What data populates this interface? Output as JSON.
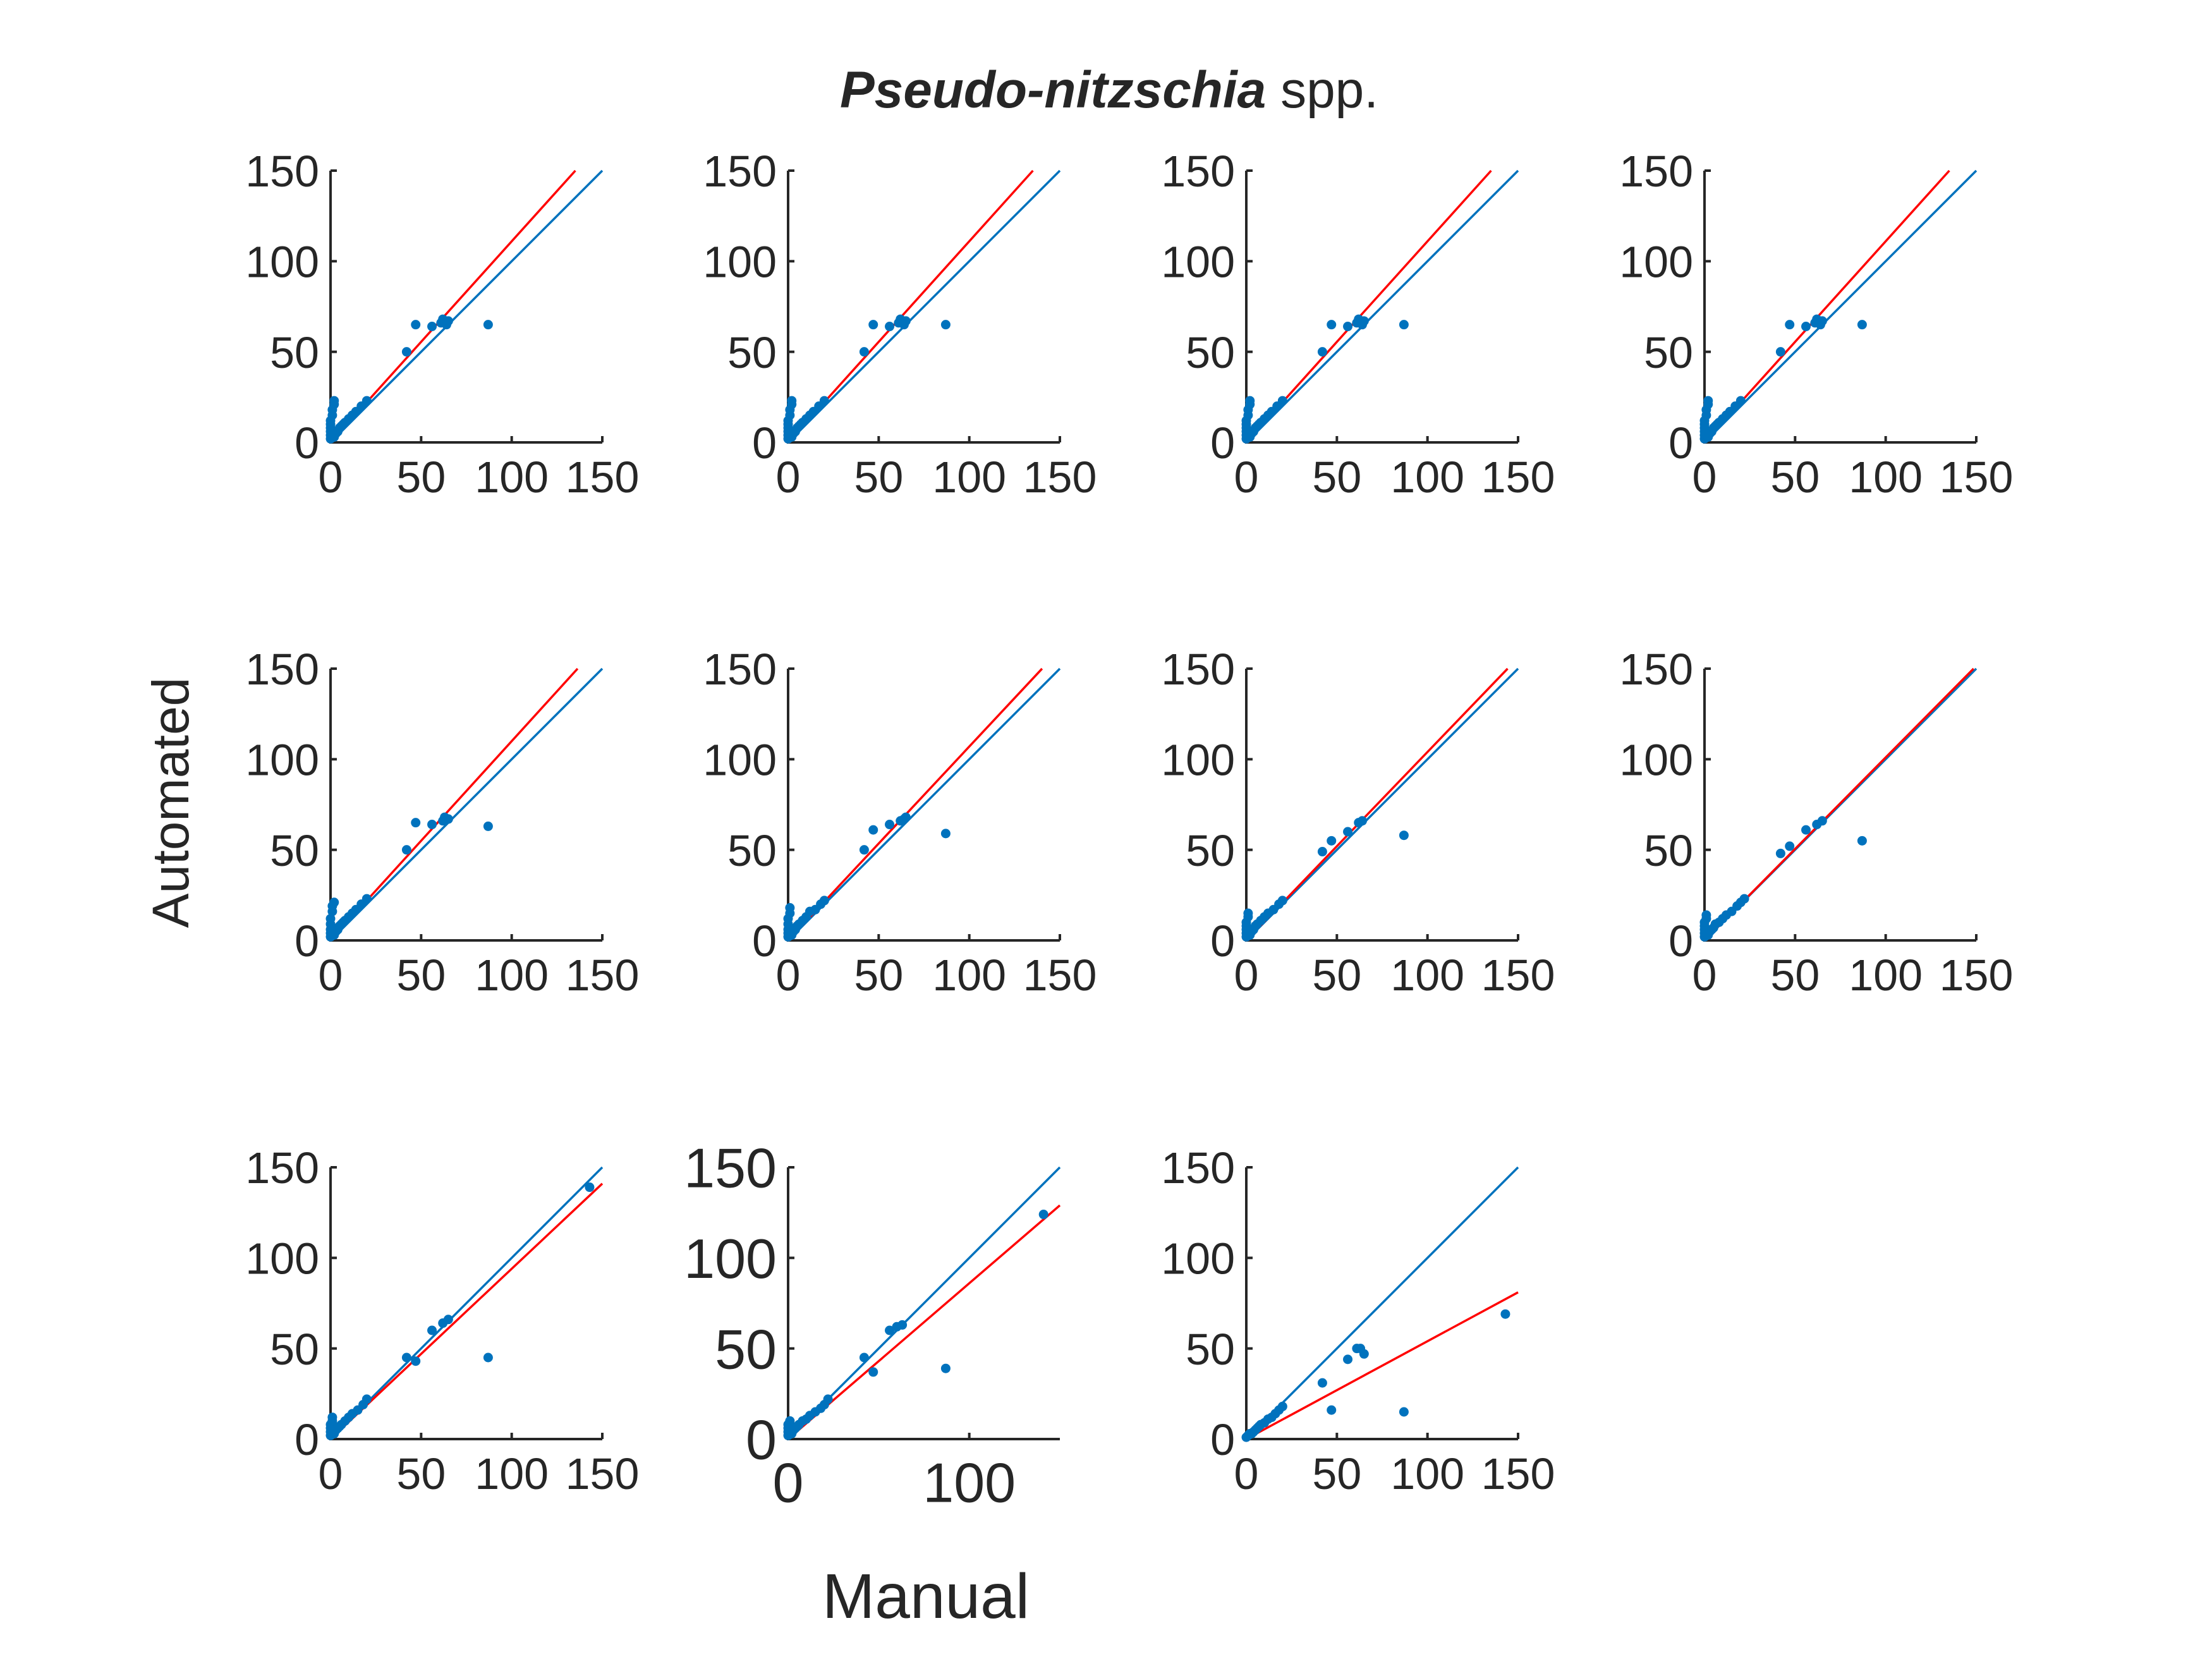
{
  "title": {
    "species": "Pseudo-nitzschia",
    "suffix": " spp."
  },
  "xlabel": "Manual",
  "ylabel": "Automated",
  "colors": {
    "identity": "#0072BD",
    "fit": "#FF0000",
    "points": "#0072BD",
    "axis": "#262626"
  },
  "chart_data": [
    {
      "type": "scatter",
      "xlim": [
        0,
        150
      ],
      "ylim": [
        0,
        150
      ],
      "xticks": [
        0,
        50,
        100,
        150
      ],
      "yticks": [
        0,
        50,
        100,
        150
      ],
      "fit_slope": 1.11,
      "points": [
        [
          0,
          2
        ],
        [
          0,
          4
        ],
        [
          0,
          6
        ],
        [
          0,
          8
        ],
        [
          0,
          10
        ],
        [
          0,
          12
        ],
        [
          1,
          15
        ],
        [
          1,
          18
        ],
        [
          2,
          21
        ],
        [
          2,
          23
        ],
        [
          2,
          3
        ],
        [
          3,
          5
        ],
        [
          4,
          6
        ],
        [
          5,
          8
        ],
        [
          6,
          9
        ],
        [
          7,
          10
        ],
        [
          8,
          11
        ],
        [
          10,
          13
        ],
        [
          12,
          15
        ],
        [
          14,
          17
        ],
        [
          17,
          20
        ],
        [
          20,
          23
        ],
        [
          42,
          50
        ],
        [
          47,
          65
        ],
        [
          56,
          64
        ],
        [
          61,
          66
        ],
        [
          62,
          68
        ],
        [
          63,
          67
        ],
        [
          64,
          65
        ],
        [
          65,
          67
        ],
        [
          87,
          65
        ]
      ]
    },
    {
      "type": "scatter",
      "xlim": [
        0,
        150
      ],
      "ylim": [
        0,
        150
      ],
      "xticks": [
        0,
        50,
        100,
        150
      ],
      "yticks": [
        0,
        50,
        100,
        150
      ],
      "fit_slope": 1.11,
      "points": [
        [
          0,
          2
        ],
        [
          0,
          4
        ],
        [
          0,
          6
        ],
        [
          0,
          8
        ],
        [
          0,
          10
        ],
        [
          0,
          12
        ],
        [
          1,
          15
        ],
        [
          1,
          18
        ],
        [
          2,
          21
        ],
        [
          2,
          23
        ],
        [
          2,
          3
        ],
        [
          3,
          5
        ],
        [
          4,
          6
        ],
        [
          5,
          8
        ],
        [
          6,
          9
        ],
        [
          7,
          10
        ],
        [
          8,
          11
        ],
        [
          10,
          13
        ],
        [
          12,
          15
        ],
        [
          14,
          17
        ],
        [
          17,
          20
        ],
        [
          20,
          23
        ],
        [
          42,
          50
        ],
        [
          47,
          65
        ],
        [
          56,
          64
        ],
        [
          61,
          66
        ],
        [
          62,
          68
        ],
        [
          63,
          67
        ],
        [
          64,
          65
        ],
        [
          65,
          67
        ],
        [
          87,
          65
        ]
      ]
    },
    {
      "type": "scatter",
      "xlim": [
        0,
        150
      ],
      "ylim": [
        0,
        150
      ],
      "xticks": [
        0,
        50,
        100,
        150
      ],
      "yticks": [
        0,
        50,
        100,
        150
      ],
      "fit_slope": 1.11,
      "points": [
        [
          0,
          2
        ],
        [
          0,
          4
        ],
        [
          0,
          6
        ],
        [
          0,
          8
        ],
        [
          0,
          10
        ],
        [
          0,
          12
        ],
        [
          1,
          15
        ],
        [
          1,
          18
        ],
        [
          2,
          21
        ],
        [
          2,
          23
        ],
        [
          2,
          3
        ],
        [
          3,
          5
        ],
        [
          4,
          6
        ],
        [
          5,
          8
        ],
        [
          6,
          9
        ],
        [
          7,
          10
        ],
        [
          8,
          11
        ],
        [
          10,
          13
        ],
        [
          12,
          15
        ],
        [
          14,
          17
        ],
        [
          17,
          20
        ],
        [
          20,
          23
        ],
        [
          42,
          50
        ],
        [
          47,
          65
        ],
        [
          56,
          64
        ],
        [
          61,
          66
        ],
        [
          62,
          68
        ],
        [
          63,
          67
        ],
        [
          64,
          65
        ],
        [
          65,
          67
        ],
        [
          87,
          65
        ]
      ]
    },
    {
      "type": "scatter",
      "xlim": [
        0,
        150
      ],
      "ylim": [
        0,
        150
      ],
      "xticks": [
        0,
        50,
        100,
        150
      ],
      "yticks": [
        0,
        50,
        100,
        150
      ],
      "fit_slope": 1.11,
      "points": [
        [
          0,
          2
        ],
        [
          0,
          4
        ],
        [
          0,
          6
        ],
        [
          0,
          8
        ],
        [
          0,
          10
        ],
        [
          0,
          12
        ],
        [
          1,
          15
        ],
        [
          1,
          18
        ],
        [
          2,
          21
        ],
        [
          2,
          23
        ],
        [
          2,
          3
        ],
        [
          3,
          5
        ],
        [
          4,
          6
        ],
        [
          5,
          8
        ],
        [
          6,
          9
        ],
        [
          7,
          10
        ],
        [
          8,
          11
        ],
        [
          10,
          13
        ],
        [
          12,
          15
        ],
        [
          14,
          17
        ],
        [
          17,
          20
        ],
        [
          20,
          23
        ],
        [
          42,
          50
        ],
        [
          47,
          65
        ],
        [
          56,
          64
        ],
        [
          61,
          66
        ],
        [
          62,
          68
        ],
        [
          63,
          67
        ],
        [
          64,
          65
        ],
        [
          65,
          67
        ],
        [
          87,
          65
        ]
      ]
    },
    {
      "type": "scatter",
      "xlim": [
        0,
        150
      ],
      "ylim": [
        0,
        150
      ],
      "xticks": [
        0,
        50,
        100,
        150
      ],
      "yticks": [
        0,
        50,
        100,
        150
      ],
      "fit_slope": 1.1,
      "points": [
        [
          0,
          2
        ],
        [
          0,
          4
        ],
        [
          0,
          6
        ],
        [
          0,
          9
        ],
        [
          0,
          12
        ],
        [
          1,
          16
        ],
        [
          1,
          19
        ],
        [
          2,
          21
        ],
        [
          2,
          3
        ],
        [
          3,
          5
        ],
        [
          4,
          6
        ],
        [
          5,
          8
        ],
        [
          6,
          9
        ],
        [
          7,
          10
        ],
        [
          8,
          11
        ],
        [
          10,
          13
        ],
        [
          12,
          15
        ],
        [
          14,
          17
        ],
        [
          17,
          20
        ],
        [
          20,
          23
        ],
        [
          42,
          50
        ],
        [
          47,
          65
        ],
        [
          56,
          64
        ],
        [
          62,
          66
        ],
        [
          63,
          68
        ],
        [
          65,
          67
        ],
        [
          87,
          63
        ]
      ]
    },
    {
      "type": "scatter",
      "xlim": [
        0,
        150
      ],
      "ylim": [
        0,
        150
      ],
      "xticks": [
        0,
        50,
        100,
        150
      ],
      "yticks": [
        0,
        50,
        100,
        150
      ],
      "fit_slope": 1.07,
      "points": [
        [
          0,
          2
        ],
        [
          0,
          4
        ],
        [
          0,
          6
        ],
        [
          0,
          9
        ],
        [
          0,
          12
        ],
        [
          1,
          15
        ],
        [
          1,
          18
        ],
        [
          2,
          3
        ],
        [
          3,
          5
        ],
        [
          4,
          6
        ],
        [
          5,
          8
        ],
        [
          6,
          9
        ],
        [
          8,
          11
        ],
        [
          10,
          13
        ],
        [
          12,
          16
        ],
        [
          15,
          17
        ],
        [
          18,
          20
        ],
        [
          20,
          22
        ],
        [
          42,
          50
        ],
        [
          47,
          61
        ],
        [
          56,
          64
        ],
        [
          62,
          66
        ],
        [
          64,
          67
        ],
        [
          65,
          68
        ],
        [
          87,
          59
        ]
      ]
    },
    {
      "type": "scatter",
      "xlim": [
        0,
        150
      ],
      "ylim": [
        0,
        150
      ],
      "xticks": [
        0,
        50,
        100,
        150
      ],
      "yticks": [
        0,
        50,
        100,
        150
      ],
      "fit_slope": 1.04,
      "points": [
        [
          0,
          2
        ],
        [
          0,
          4
        ],
        [
          0,
          6
        ],
        [
          0,
          8
        ],
        [
          0,
          10
        ],
        [
          1,
          13
        ],
        [
          1,
          15
        ],
        [
          2,
          3
        ],
        [
          3,
          5
        ],
        [
          4,
          6
        ],
        [
          5,
          8
        ],
        [
          6,
          9
        ],
        [
          8,
          11
        ],
        [
          10,
          13
        ],
        [
          12,
          15
        ],
        [
          15,
          17
        ],
        [
          18,
          20
        ],
        [
          20,
          22
        ],
        [
          42,
          49
        ],
        [
          47,
          55
        ],
        [
          56,
          60
        ],
        [
          62,
          65
        ],
        [
          64,
          66
        ],
        [
          87,
          58
        ]
      ]
    },
    {
      "type": "scatter",
      "xlim": [
        0,
        150
      ],
      "ylim": [
        0,
        150
      ],
      "xticks": [
        0,
        50,
        100,
        150
      ],
      "yticks": [
        0,
        50,
        100,
        150
      ],
      "fit_slope": 1.01,
      "points": [
        [
          0,
          2
        ],
        [
          0,
          4
        ],
        [
          0,
          6
        ],
        [
          0,
          8
        ],
        [
          0,
          10
        ],
        [
          1,
          12
        ],
        [
          1,
          14
        ],
        [
          2,
          3
        ],
        [
          3,
          5
        ],
        [
          4,
          6
        ],
        [
          5,
          7
        ],
        [
          6,
          9
        ],
        [
          8,
          10
        ],
        [
          10,
          12
        ],
        [
          12,
          14
        ],
        [
          15,
          16
        ],
        [
          18,
          19
        ],
        [
          20,
          21
        ],
        [
          22,
          23
        ],
        [
          42,
          48
        ],
        [
          47,
          52
        ],
        [
          56,
          61
        ],
        [
          62,
          64
        ],
        [
          65,
          66
        ],
        [
          87,
          55
        ]
      ]
    },
    {
      "type": "scatter",
      "xlim": [
        0,
        150
      ],
      "ylim": [
        0,
        150
      ],
      "xticks": [
        0,
        50,
        100,
        150
      ],
      "yticks": [
        0,
        50,
        100,
        150
      ],
      "fit_slope": 0.94,
      "points": [
        [
          0,
          2
        ],
        [
          0,
          4
        ],
        [
          0,
          6
        ],
        [
          0,
          8
        ],
        [
          1,
          10
        ],
        [
          1,
          12
        ],
        [
          2,
          3
        ],
        [
          3,
          5
        ],
        [
          4,
          6
        ],
        [
          5,
          7
        ],
        [
          6,
          8
        ],
        [
          8,
          10
        ],
        [
          10,
          12
        ],
        [
          12,
          14
        ],
        [
          15,
          16
        ],
        [
          18,
          19
        ],
        [
          20,
          22
        ],
        [
          42,
          45
        ],
        [
          47,
          43
        ],
        [
          56,
          60
        ],
        [
          62,
          64
        ],
        [
          65,
          66
        ],
        [
          87,
          45
        ],
        [
          143,
          139
        ]
      ]
    },
    {
      "type": "scatter",
      "xlim": [
        0,
        150
      ],
      "ylim": [
        0,
        150
      ],
      "xticks": [
        0,
        100
      ],
      "yticks": [
        0,
        50,
        100,
        150
      ],
      "fit_slope": 0.86,
      "points": [
        [
          0,
          2
        ],
        [
          0,
          4
        ],
        [
          0,
          6
        ],
        [
          0,
          8
        ],
        [
          1,
          10
        ],
        [
          2,
          3
        ],
        [
          3,
          5
        ],
        [
          4,
          6
        ],
        [
          5,
          7
        ],
        [
          6,
          8
        ],
        [
          8,
          10
        ],
        [
          10,
          11
        ],
        [
          12,
          13
        ],
        [
          15,
          15
        ],
        [
          18,
          17
        ],
        [
          20,
          19
        ],
        [
          22,
          22
        ],
        [
          42,
          45
        ],
        [
          47,
          37
        ],
        [
          56,
          60
        ],
        [
          60,
          62
        ],
        [
          63,
          63
        ],
        [
          87,
          39
        ],
        [
          141,
          124
        ]
      ]
    },
    {
      "type": "scatter",
      "xlim": [
        0,
        150
      ],
      "ylim": [
        0,
        150
      ],
      "xticks": [
        0,
        50,
        100,
        150
      ],
      "yticks": [
        0,
        50,
        100,
        150
      ],
      "fit_slope": 0.54,
      "points": [
        [
          0,
          1
        ],
        [
          1,
          2
        ],
        [
          2,
          3
        ],
        [
          3,
          3
        ],
        [
          4,
          4
        ],
        [
          5,
          5
        ],
        [
          6,
          6
        ],
        [
          7,
          7
        ],
        [
          8,
          8
        ],
        [
          10,
          9
        ],
        [
          12,
          11
        ],
        [
          14,
          12
        ],
        [
          16,
          14
        ],
        [
          18,
          16
        ],
        [
          20,
          18
        ],
        [
          42,
          31
        ],
        [
          47,
          16
        ],
        [
          56,
          44
        ],
        [
          61,
          50
        ],
        [
          63,
          50
        ],
        [
          65,
          47
        ],
        [
          87,
          15
        ],
        [
          143,
          69
        ]
      ]
    }
  ]
}
